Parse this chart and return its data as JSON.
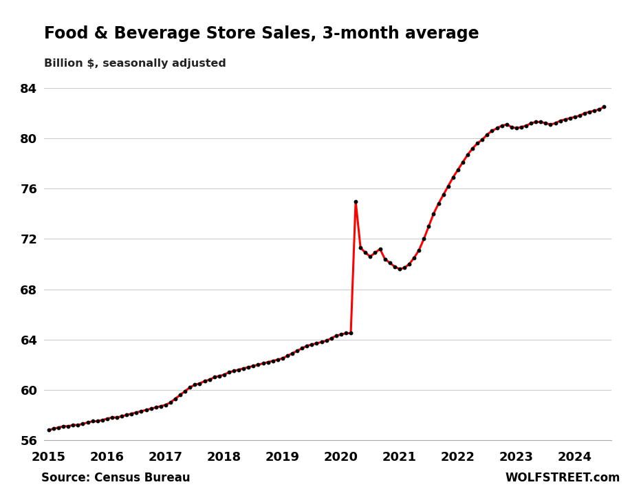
{
  "title": "Food & Beverage Store Sales, 3-month average",
  "subtitle": "Billion $, seasonally adjusted",
  "source_left": "Source: Census Bureau",
  "source_right": "WOLFSTREET.com",
  "line_color": "#ff0000",
  "marker_color": "#000000",
  "background_color": "#ffffff",
  "grid_color": "#cccccc",
  "ylim": [
    56,
    84
  ],
  "yticks": [
    56,
    60,
    64,
    68,
    72,
    76,
    80,
    84
  ],
  "xticks": [
    2015,
    2016,
    2017,
    2018,
    2019,
    2020,
    2021,
    2022,
    2023,
    2024
  ],
  "data": {
    "dates": [
      2015.0,
      2015.083,
      2015.167,
      2015.25,
      2015.333,
      2015.417,
      2015.5,
      2015.583,
      2015.667,
      2015.75,
      2015.833,
      2015.917,
      2016.0,
      2016.083,
      2016.167,
      2016.25,
      2016.333,
      2016.417,
      2016.5,
      2016.583,
      2016.667,
      2016.75,
      2016.833,
      2016.917,
      2017.0,
      2017.083,
      2017.167,
      2017.25,
      2017.333,
      2017.417,
      2017.5,
      2017.583,
      2017.667,
      2017.75,
      2017.833,
      2017.917,
      2018.0,
      2018.083,
      2018.167,
      2018.25,
      2018.333,
      2018.417,
      2018.5,
      2018.583,
      2018.667,
      2018.75,
      2018.833,
      2018.917,
      2019.0,
      2019.083,
      2019.167,
      2019.25,
      2019.333,
      2019.417,
      2019.5,
      2019.583,
      2019.667,
      2019.75,
      2019.833,
      2019.917,
      2020.0,
      2020.083,
      2020.167,
      2020.25,
      2020.333,
      2020.417,
      2020.5,
      2020.583,
      2020.667,
      2020.75,
      2020.833,
      2020.917,
      2021.0,
      2021.083,
      2021.167,
      2021.25,
      2021.333,
      2021.417,
      2021.5,
      2021.583,
      2021.667,
      2021.75,
      2021.833,
      2021.917,
      2022.0,
      2022.083,
      2022.167,
      2022.25,
      2022.333,
      2022.417,
      2022.5,
      2022.583,
      2022.667,
      2022.75,
      2022.833,
      2022.917,
      2023.0,
      2023.083,
      2023.167,
      2023.25,
      2023.333,
      2023.417,
      2023.5,
      2023.583,
      2023.667,
      2023.75,
      2023.833,
      2023.917,
      2024.0,
      2024.083,
      2024.167,
      2024.25,
      2024.333,
      2024.417,
      2024.5
    ],
    "values": [
      56.8,
      56.9,
      57.0,
      57.1,
      57.1,
      57.2,
      57.2,
      57.3,
      57.4,
      57.5,
      57.5,
      57.6,
      57.7,
      57.8,
      57.8,
      57.9,
      58.0,
      58.1,
      58.2,
      58.3,
      58.4,
      58.5,
      58.6,
      58.7,
      58.8,
      59.0,
      59.3,
      59.6,
      59.9,
      60.2,
      60.4,
      60.5,
      60.7,
      60.8,
      61.0,
      61.1,
      61.2,
      61.4,
      61.5,
      61.6,
      61.7,
      61.8,
      61.9,
      62.0,
      62.1,
      62.2,
      62.3,
      62.4,
      62.5,
      62.7,
      62.9,
      63.1,
      63.3,
      63.5,
      63.6,
      63.7,
      63.8,
      63.9,
      64.1,
      64.3,
      64.4,
      64.5,
      64.5,
      75.0,
      71.3,
      70.9,
      70.6,
      70.9,
      71.2,
      70.4,
      70.1,
      69.8,
      69.6,
      69.7,
      70.0,
      70.5,
      71.1,
      72.0,
      73.0,
      74.0,
      74.8,
      75.5,
      76.2,
      76.9,
      77.5,
      78.1,
      78.7,
      79.2,
      79.6,
      79.9,
      80.3,
      80.6,
      80.8,
      81.0,
      81.1,
      80.9,
      80.8,
      80.9,
      81.0,
      81.2,
      81.3,
      81.3,
      81.2,
      81.1,
      81.2,
      81.4,
      81.5,
      81.6,
      81.7,
      81.8,
      82.0,
      82.1,
      82.2,
      82.3,
      82.5
    ]
  }
}
